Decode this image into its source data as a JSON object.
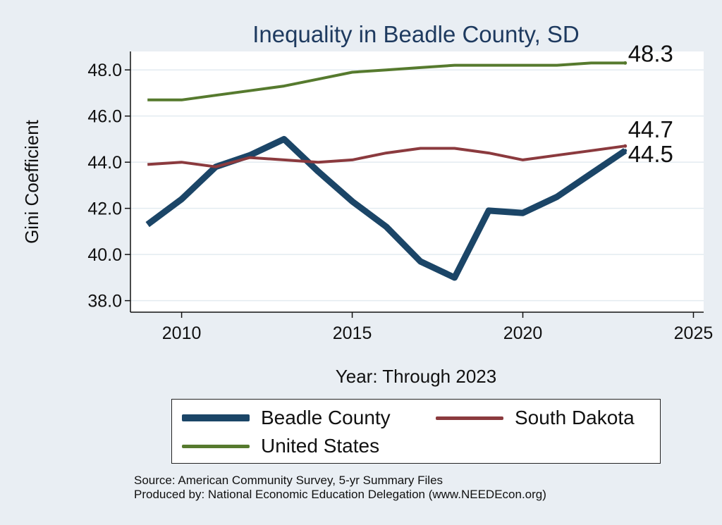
{
  "chart_data": {
    "type": "line",
    "title": "Inequality in Beadle County, SD",
    "xlabel": "Year: Through 2023",
    "ylabel": "Gini Coefficient",
    "xlim": [
      2008.5,
      2025.3
    ],
    "ylim": [
      37.5,
      48.8
    ],
    "x_ticks": [
      2010,
      2015,
      2020,
      2025
    ],
    "y_ticks": [
      38.0,
      40.0,
      42.0,
      44.0,
      46.0,
      48.0
    ],
    "x_tick_labels": [
      "2010",
      "2015",
      "2020",
      "2025"
    ],
    "y_tick_labels": [
      "38.0",
      "40.0",
      "42.0",
      "44.0",
      "46.0",
      "48.0"
    ],
    "grid": true,
    "x": [
      2009,
      2010,
      2011,
      2012,
      2013,
      2014,
      2015,
      2016,
      2017,
      2018,
      2019,
      2020,
      2021,
      2022,
      2023
    ],
    "series": [
      {
        "name": "Beadle County",
        "color": "#1b4567",
        "values": [
          41.3,
          42.4,
          43.8,
          44.3,
          45.0,
          43.6,
          42.3,
          41.2,
          39.7,
          39.0,
          41.9,
          41.8,
          42.5,
          43.5,
          44.5
        ],
        "end_label": "44.5"
      },
      {
        "name": "South Dakota",
        "color": "#8b3a3e",
        "values": [
          43.9,
          44.0,
          43.8,
          44.2,
          44.1,
          44.0,
          44.1,
          44.4,
          44.6,
          44.6,
          44.4,
          44.1,
          44.3,
          44.5,
          44.7
        ],
        "end_label": "44.7"
      },
      {
        "name": "United States",
        "color": "#567a2e",
        "values": [
          46.7,
          46.7,
          46.9,
          47.1,
          47.3,
          47.6,
          47.9,
          48.0,
          48.1,
          48.2,
          48.2,
          48.2,
          48.2,
          48.3,
          48.3
        ],
        "end_label": "48.3"
      }
    ],
    "legend_position": "bottom"
  },
  "source": {
    "line1": "Source: American Community Survey, 5-yr Summary Files",
    "line2": "Produced by: National Economic Education Delegation (www.NEEDEcon.org)"
  }
}
